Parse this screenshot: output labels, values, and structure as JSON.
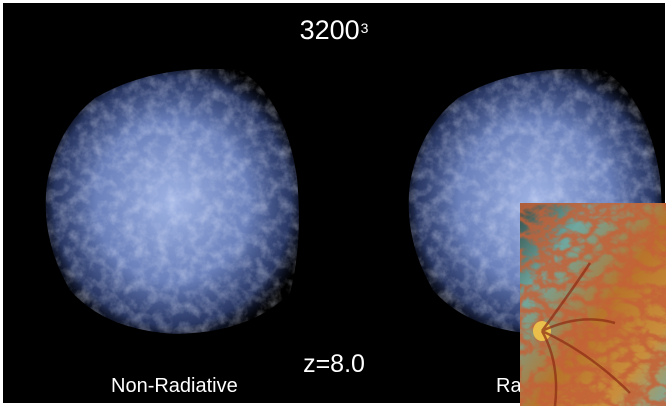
{
  "title": {
    "base": "3200",
    "exponent": "3"
  },
  "redshift": "z=8.0",
  "panels": [
    {
      "label": "Non-Radiative"
    },
    {
      "label": "Ra"
    }
  ],
  "colors": {
    "background": "#000000",
    "cloud_core": "#8fa8e6",
    "cloud_edge": "#3f5aa8",
    "inset_dark": "#5a1e0c",
    "inset_hot": "#e8b23a",
    "inset_teal": "#6fa8a0"
  }
}
